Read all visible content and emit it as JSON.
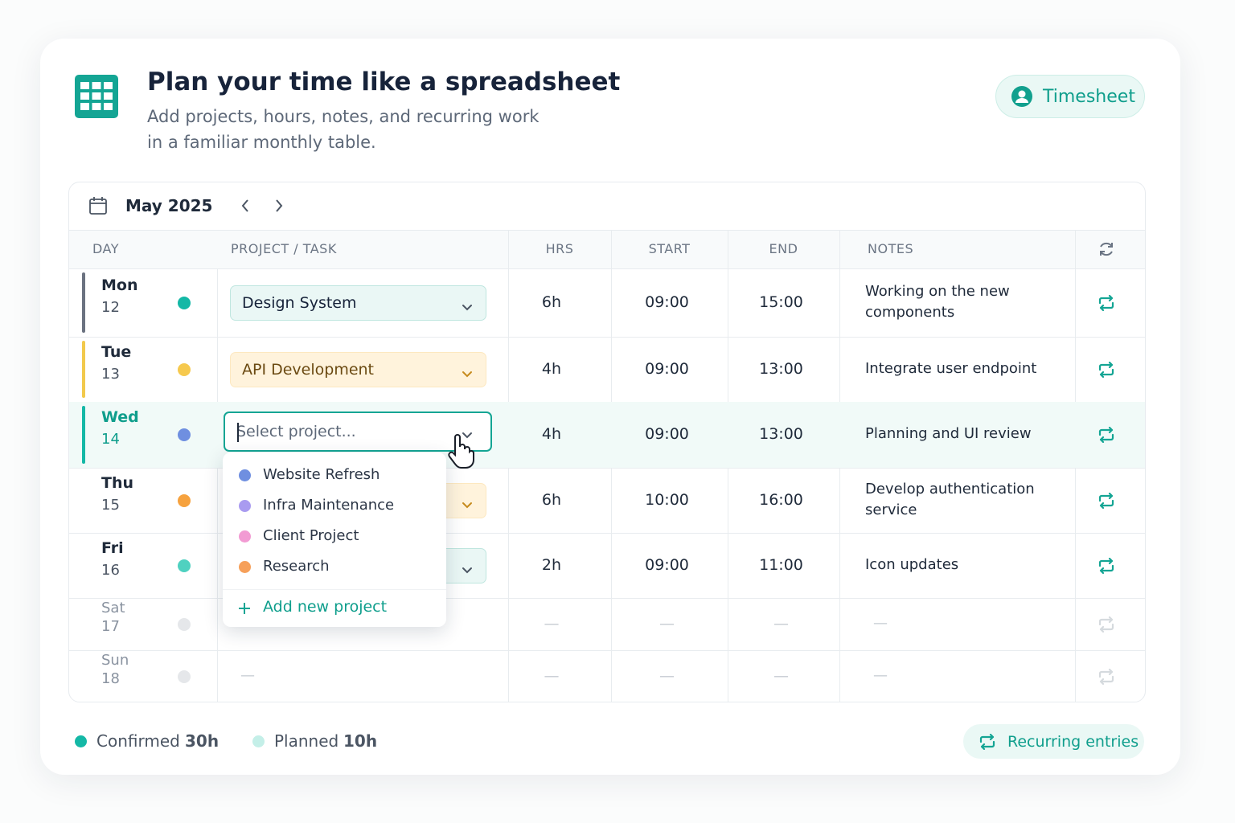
{
  "header": {
    "title": "Plan your time like a spreadsheet",
    "subtitle": [
      "Add projects, hours, notes, and recurring work",
      "in a familiar monthly table."
    ],
    "button": "Timesheet"
  },
  "toolbar": {
    "month": "May 2025"
  },
  "table": {
    "columns": [
      "DAY",
      "PROJECT / TASK",
      "HRS",
      "START",
      "END",
      "NOTES"
    ],
    "rows": [
      {
        "day": "Mon",
        "date": "12",
        "dot": "#14b8a6",
        "accent": "#6b7280",
        "select_color": "#eaf7f5",
        "project": "Design System",
        "hours": "6h",
        "start": "09:00",
        "end": "15:00",
        "notes": [
          "Working on the new",
          "components"
        ]
      },
      {
        "day": "Tue",
        "date": "13",
        "dot": "#f6c94e",
        "accent": "#f2c94c",
        "select_color": "#fff3dc",
        "project": "API Development",
        "hours": "4h",
        "start": "09:00",
        "end": "13:00",
        "notes": [
          "Integrate user endpoint"
        ]
      },
      {
        "day": "Wed",
        "date": "14",
        "dot": "#6f8fe0",
        "accent": "#14b8a6",
        "active": true,
        "placeholder": "Select project...",
        "hours": "4h",
        "start": "09:00",
        "end": "13:00",
        "notes": [
          "Planning and UI review"
        ]
      },
      {
        "day": "Thu",
        "date": "15",
        "dot": "#f6a23e",
        "select_color": "#fff3dc",
        "hours": "6h",
        "start": "10:00",
        "end": "16:00",
        "notes": [
          "Develop authentication",
          "service"
        ]
      },
      {
        "day": "Fri",
        "date": "16",
        "dot": "#4fd1c0",
        "select_color": "#eaf7f5",
        "hours": "2h",
        "start": "09:00",
        "end": "11:00",
        "notes": [
          "Icon updates"
        ]
      },
      {
        "day": "Sat",
        "date": "17",
        "dot": "#e5e7ea",
        "muted": true,
        "hours": "—",
        "start": "—",
        "end": "—",
        "notes": [
          "—"
        ]
      },
      {
        "day": "Sun",
        "date": "18",
        "dot": "#e5e7ea",
        "muted": true,
        "project": "—",
        "hours": "—",
        "start": "—",
        "end": "—",
        "notes": [
          "—"
        ]
      }
    ]
  },
  "dropdown": {
    "options": [
      {
        "label": "Website Refresh",
        "color": "#6f8fe0"
      },
      {
        "label": "Infra Maintenance",
        "color": "#a99bf0"
      },
      {
        "label": "Client Project",
        "color": "#f29bd3"
      },
      {
        "label": "Research",
        "color": "#f6a05a"
      }
    ],
    "add": "Add new project"
  },
  "footer": {
    "confirmed": {
      "label": "Confirmed",
      "value": "30h",
      "color": "#14b8a6"
    },
    "planned": {
      "label": "Planned",
      "value": "10h",
      "color": "#c4efe8"
    },
    "button": "Recurring entries"
  }
}
